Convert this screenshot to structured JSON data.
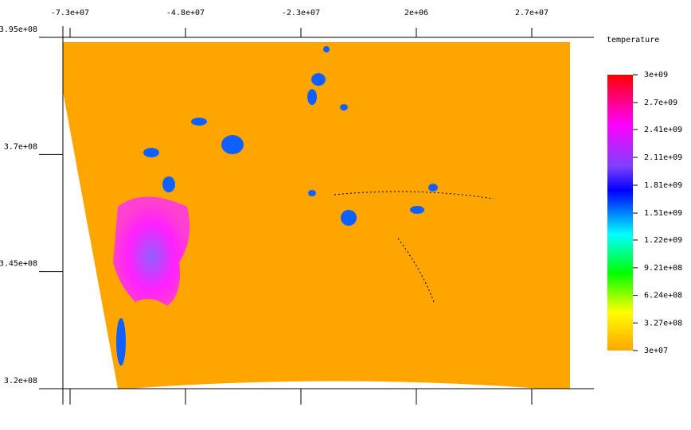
{
  "chart_data": {
    "type": "image",
    "xlim": [
      -74550000,
      35280000
    ],
    "xticks": [
      {
        "value": -73000000,
        "label": "-7.3e+07"
      },
      {
        "value": -48000000,
        "label": "-4.8e+07"
      },
      {
        "value": -23000000,
        "label": "-2.3e+07"
      },
      {
        "value": 2000000,
        "label": "2e+06"
      },
      {
        "value": 27000000,
        "label": "2.7e+07"
      }
    ],
    "ylim": [
      320000000,
      395000000
    ],
    "yticks": [
      {
        "value": 395000000,
        "label": "3.95e+08"
      },
      {
        "value": 370000000,
        "label": "3.7e+08"
      },
      {
        "value": 345000000,
        "label": "3.45e+08"
      },
      {
        "value": 320000000,
        "label": "3.2e+08"
      }
    ],
    "colorbar": {
      "title": "temperature",
      "lim": [
        30000000,
        3000000000
      ],
      "ticks": [
        {
          "value": 3000000000,
          "label": "3e+09"
        },
        {
          "value": 2700000000,
          "label": "2.7e+09"
        },
        {
          "value": 2410000000,
          "label": "2.41e+09"
        },
        {
          "value": 2110000000,
          "label": "2.11e+09"
        },
        {
          "value": 1810000000,
          "label": "1.81e+09"
        },
        {
          "value": 1510000000,
          "label": "1.51e+09"
        },
        {
          "value": 1220000000,
          "label": "1.22e+09"
        },
        {
          "value": 921000000,
          "label": "9.21e+08"
        },
        {
          "value": 624000000,
          "label": "6.24e+08"
        },
        {
          "value": 327000000,
          "label": "3.27e+08"
        },
        {
          "value": 30000000,
          "label": "3e+07"
        }
      ]
    }
  }
}
